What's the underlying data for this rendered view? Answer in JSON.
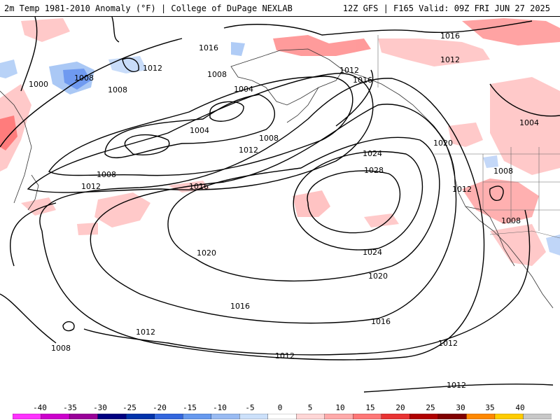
{
  "header": {
    "title": "2m Temp 1981-2010 Anomaly (°F) | College of DuPage NEXLAB",
    "run_info": "12Z GFS | F165 Valid: 09Z FRI JUN 27 2025"
  },
  "map": {
    "contour_labels": [
      "1000",
      "1008",
      "1008",
      "1012",
      "1016",
      "1008",
      "1004",
      "1004",
      "1008",
      "1012",
      "1008",
      "1012",
      "1016",
      "1012",
      "1016",
      "1016",
      "1012",
      "1004",
      "1020",
      "1024",
      "1028",
      "1008",
      "1012",
      "1008",
      "1020",
      "1024",
      "1020",
      "1016",
      "1016",
      "1012",
      "1012",
      "1008",
      "1012",
      "1012"
    ]
  },
  "legend": {
    "ticks": [
      "-40",
      "-35",
      "-30",
      "-25",
      "-20",
      "-15",
      "-10",
      "-5",
      "0",
      "5",
      "10",
      "15",
      "20",
      "25",
      "30",
      "35",
      "40"
    ],
    "colors": [
      "#ff33ff",
      "#cc00cc",
      "#990099",
      "#000080",
      "#0033aa",
      "#3366dd",
      "#6699ee",
      "#99bbf2",
      "#cce0fa",
      "#ffffff",
      "#ffd6d6",
      "#ffaaaa",
      "#ff7777",
      "#e83333",
      "#b00000",
      "#800000",
      "#ff8800",
      "#ffcc00",
      "#c8c8c8"
    ]
  }
}
